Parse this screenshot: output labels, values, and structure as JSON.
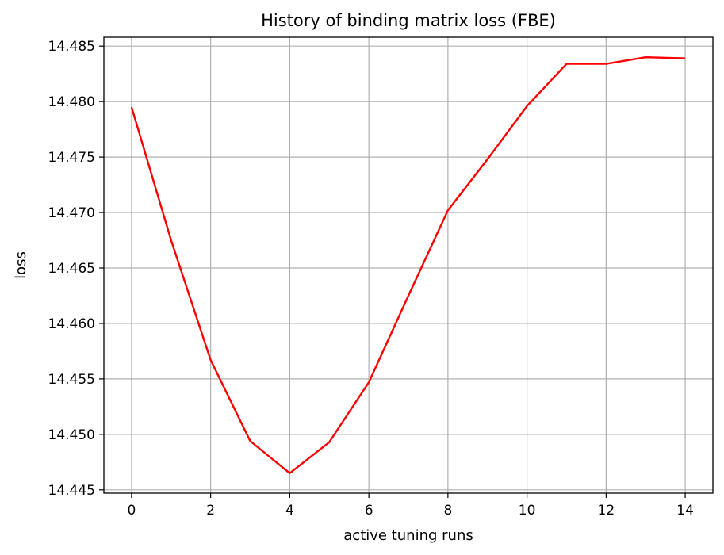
{
  "chart_data": {
    "type": "line",
    "title": "History of binding matrix loss (FBE)",
    "xlabel": "active tuning runs",
    "ylabel": "loss",
    "xlim": [
      -0.7,
      14.7
    ],
    "ylim": [
      14.4447,
      14.4858
    ],
    "xticks": [
      0,
      2,
      4,
      6,
      8,
      10,
      12,
      14
    ],
    "xtick_labels": [
      "0",
      "2",
      "4",
      "6",
      "8",
      "10",
      "12",
      "14"
    ],
    "yticks": [
      14.445,
      14.45,
      14.455,
      14.46,
      14.465,
      14.47,
      14.475,
      14.48,
      14.485
    ],
    "ytick_labels": [
      "14.445",
      "14.450",
      "14.455",
      "14.460",
      "14.465",
      "14.470",
      "14.475",
      "14.480",
      "14.485"
    ],
    "grid": true,
    "series": [
      {
        "color": "#ff0000",
        "x": [
          0,
          1,
          2,
          3,
          4,
          5,
          6,
          7,
          8,
          9,
          10,
          11,
          12,
          13,
          14
        ],
        "y": [
          14.4795,
          14.4675,
          14.4567,
          14.4494,
          14.4465,
          14.4493,
          14.4547,
          14.4625,
          14.4702,
          14.4748,
          14.4796,
          14.4834,
          14.4834,
          14.484,
          14.4839
        ]
      }
    ]
  }
}
